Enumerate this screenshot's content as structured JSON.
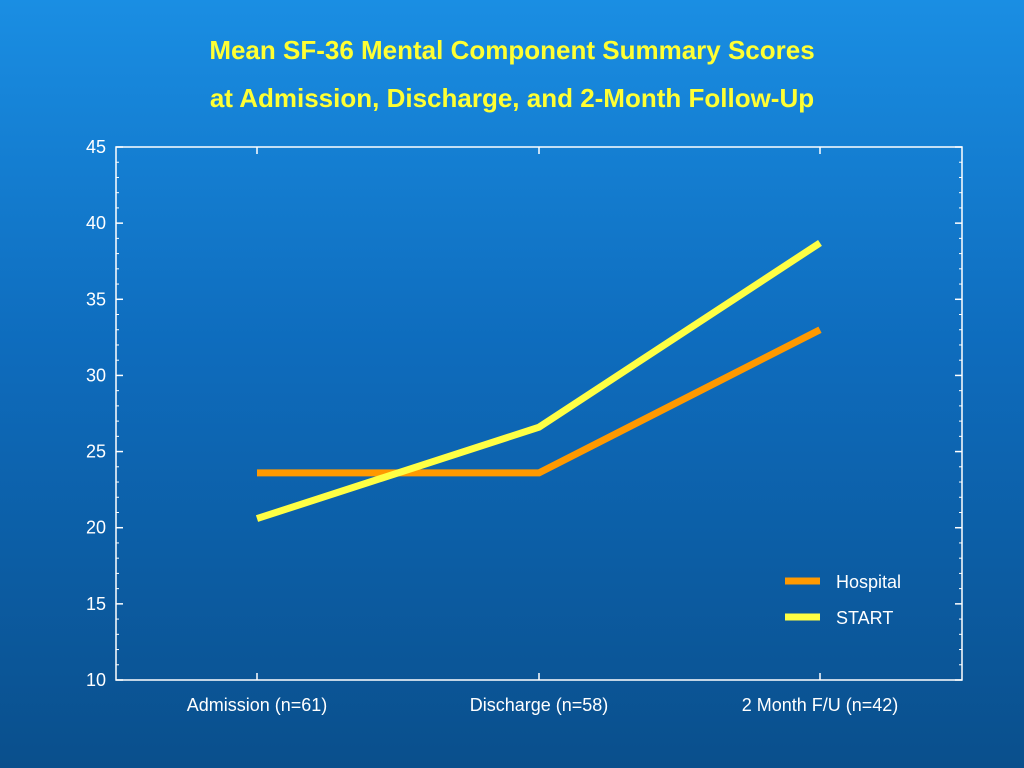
{
  "chart_data": {
    "type": "line",
    "title_lines": [
      "Mean SF-36 Mental Component Summary Scores",
      "at Admission, Discharge, and 2-Month Follow-Up"
    ],
    "xlabel": "",
    "ylabel": "",
    "categories": [
      "Admission (n=61)",
      "Discharge (n=58)",
      "2 Month F/U (n=42)"
    ],
    "ylim": [
      10,
      45
    ],
    "yticks": [
      10,
      15,
      20,
      25,
      30,
      35,
      40,
      45
    ],
    "series": [
      {
        "name": "Hospital",
        "color": "#ff9900",
        "values": [
          23.6,
          23.6,
          33.0
        ]
      },
      {
        "name": "START",
        "color": "#ffff44",
        "values": [
          20.6,
          26.6,
          38.7
        ]
      }
    ],
    "legend_position": "bottom-right",
    "grid": false,
    "colors": {
      "title": "#ffff33",
      "axes": "#ffffff",
      "text": "#ffffff"
    }
  }
}
